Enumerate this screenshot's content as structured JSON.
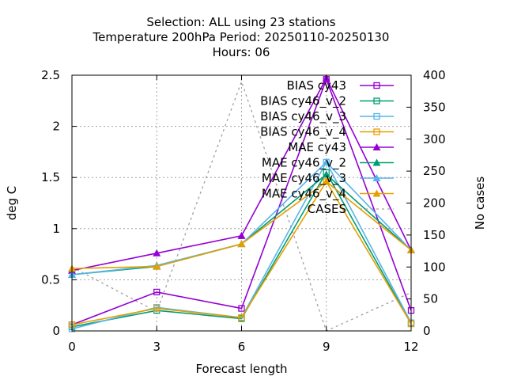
{
  "chart_data": {
    "type": "line",
    "title_lines": [
      "Selection: ALL using    23 stations",
      "Temperature 200hPa   Period: 20250110-20250130",
      "Hours:  06"
    ],
    "xlabel": "Forecast length",
    "ylabel": "deg C",
    "y2label": "No cases",
    "x": [
      0,
      3,
      6,
      9,
      12
    ],
    "xlim": [
      0,
      12
    ],
    "ylim": [
      0,
      2.5
    ],
    "y2lim": [
      0,
      400
    ],
    "xticks": [
      "0",
      "3",
      "6",
      "9",
      "12"
    ],
    "yticks": [
      "0",
      "0.5",
      "1",
      "1.5",
      "2",
      "2.5"
    ],
    "y2ticks": [
      "0",
      "50",
      "100",
      "150",
      "200",
      "250",
      "300",
      "350",
      "400"
    ],
    "grid": true,
    "legend_position": "top-right",
    "series": [
      {
        "name": "BIAS cy43",
        "axis": "y",
        "marker": "square",
        "color": "#9400d3",
        "values": [
          0.06,
          0.38,
          0.22,
          2.46,
          0.2
        ]
      },
      {
        "name": "BIAS cy46_v_2",
        "axis": "y",
        "marker": "square",
        "color": "#009e73",
        "values": [
          0.04,
          0.2,
          0.12,
          1.55,
          0.07
        ]
      },
      {
        "name": "BIAS cy46_v_3",
        "axis": "y",
        "marker": "square",
        "color": "#56b4e9",
        "values": [
          0.02,
          0.23,
          0.13,
          1.65,
          0.08
        ]
      },
      {
        "name": "BIAS cy46_v_4",
        "axis": "y",
        "marker": "square",
        "color": "#e69f00",
        "values": [
          0.06,
          0.22,
          0.13,
          1.46,
          0.07
        ]
      },
      {
        "name": "MAE cy43",
        "axis": "y",
        "marker": "triangle",
        "color": "#9400d3",
        "values": [
          0.59,
          0.76,
          0.93,
          2.47,
          0.79
        ]
      },
      {
        "name": "MAE cy46_v_2",
        "axis": "y",
        "marker": "triangle",
        "color": "#009e73",
        "values": [
          0.55,
          0.63,
          0.85,
          1.53,
          0.79
        ]
      },
      {
        "name": "MAE cy46_v_3",
        "axis": "y",
        "marker": "triangle",
        "color": "#56b4e9",
        "values": [
          0.55,
          0.64,
          0.85,
          1.65,
          0.79
        ]
      },
      {
        "name": "MAE cy46_v_4",
        "axis": "y",
        "marker": "triangle",
        "color": "#e69f00",
        "values": [
          0.61,
          0.63,
          0.85,
          1.46,
          0.79
        ]
      },
      {
        "name": "CASES",
        "axis": "y2",
        "marker": "none",
        "color": "#a0a0a0",
        "dashed": true,
        "values": [
          100,
          30,
          390,
          0,
          60
        ]
      }
    ]
  }
}
